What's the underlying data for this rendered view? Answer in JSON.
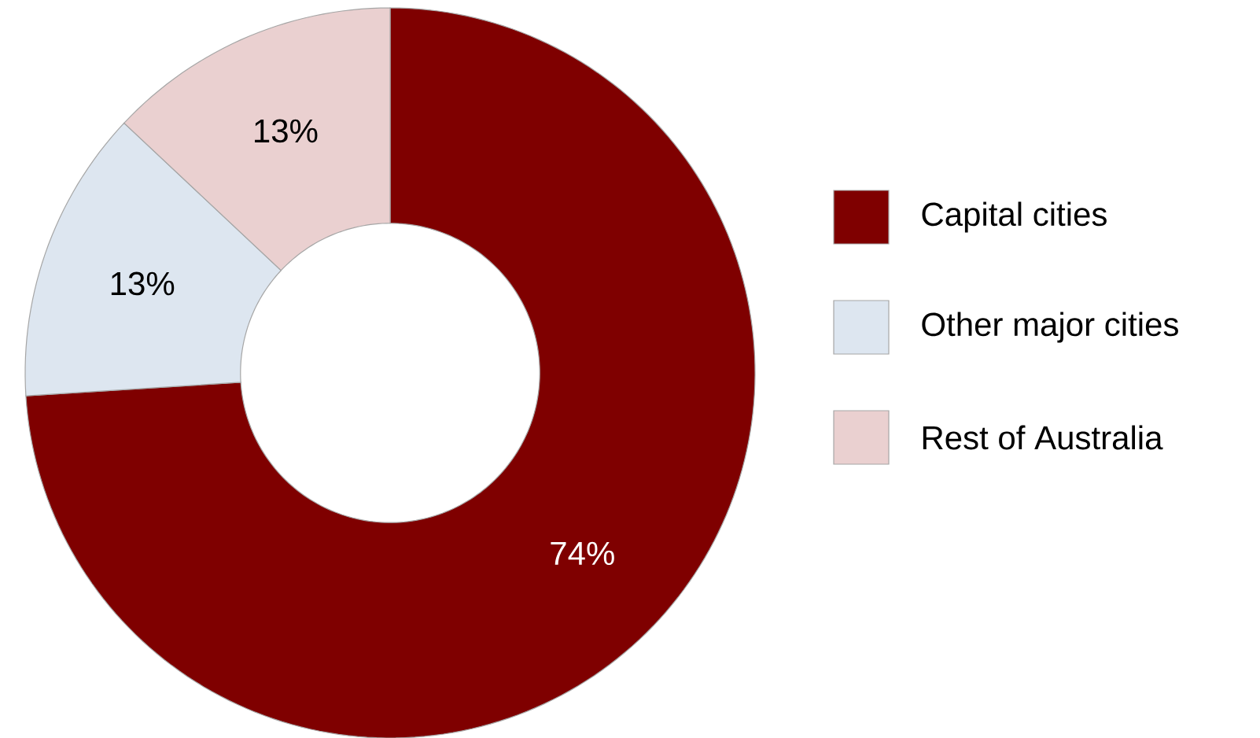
{
  "chart_data": {
    "type": "donut",
    "categories": [
      "Capital cities",
      "Other major cities",
      "Rest of Australia"
    ],
    "values": [
      74,
      13,
      13
    ],
    "value_labels": [
      "74%",
      "13%",
      "13%"
    ],
    "colors": [
      "#7f0000",
      "#dde6f0",
      "#ead0d0"
    ],
    "legend": "right"
  }
}
